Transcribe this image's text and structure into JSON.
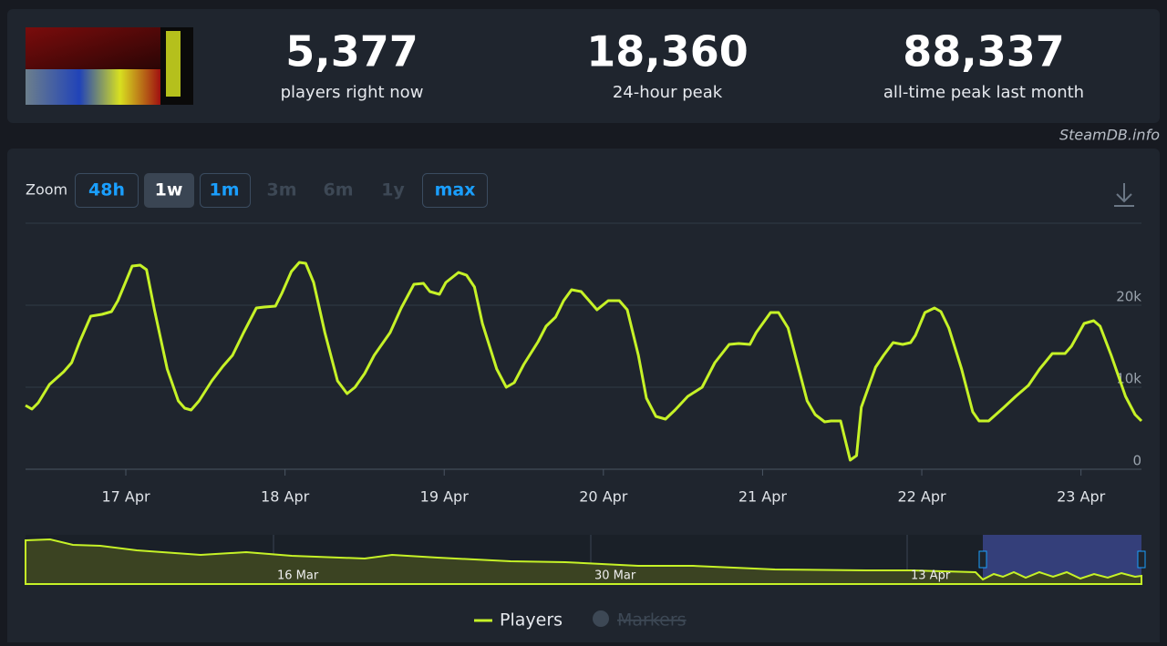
{
  "stats": [
    {
      "value": "5,377",
      "label": "players right now"
    },
    {
      "value": "18,360",
      "label": "24-hour peak"
    },
    {
      "value": "88,337",
      "label": "all-time peak last month"
    }
  ],
  "watermark": "SteamDB.info",
  "zoom": {
    "label": "Zoom",
    "options": [
      "48h",
      "1w",
      "1m",
      "3m",
      "6m",
      "1y",
      "max"
    ]
  },
  "chart_data": {
    "type": "line",
    "x": [
      16.37,
      16.41,
      16.45,
      16.52,
      16.61,
      16.66,
      16.71,
      16.78,
      16.85,
      16.91,
      16.95,
      17.04,
      17.09,
      17.13,
      17.18,
      17.26,
      17.33,
      17.37,
      17.41,
      17.46,
      17.54,
      17.61,
      17.67,
      17.74,
      17.82,
      17.87,
      17.94,
      17.98,
      18.04,
      18.09,
      18.13,
      18.18,
      18.25,
      18.33,
      18.39,
      18.44,
      18.5,
      18.56,
      18.66,
      18.73,
      18.81,
      18.87,
      18.91,
      18.97,
      19.01,
      19.09,
      19.14,
      19.19,
      19.24,
      19.33,
      19.39,
      19.44,
      19.5,
      19.59,
      19.64,
      19.7,
      19.75,
      19.8,
      19.86,
      19.92,
      19.96,
      20.03,
      20.1,
      20.15,
      20.22,
      20.27,
      20.33,
      20.39,
      20.45,
      20.53,
      20.62,
      20.7,
      20.79,
      20.85,
      20.92,
      20.96,
      21.05,
      21.1,
      21.16,
      21.22,
      21.28,
      21.33,
      21.39,
      21.43,
      21.49,
      21.55,
      21.59,
      21.62,
      21.71,
      21.76,
      21.82,
      21.88,
      21.93,
      21.96,
      22.02,
      22.08,
      22.12,
      22.17,
      22.25,
      22.32,
      22.36,
      22.42,
      22.51,
      22.59,
      22.67,
      22.74,
      22.82,
      22.9,
      22.94,
      23.02,
      23.08,
      23.12,
      23.19,
      23.28,
      23.34,
      23.38
    ],
    "series": [
      {
        "name": "Players",
        "color": "#c6f227",
        "values": [
          7780,
          7330,
          8110,
          10330,
          11890,
          13000,
          15560,
          18670,
          18890,
          19220,
          20560,
          24780,
          24890,
          24330,
          19440,
          12220,
          8330,
          7440,
          7220,
          8330,
          10780,
          12560,
          13890,
          16670,
          19670,
          19780,
          19890,
          21440,
          24110,
          25220,
          25110,
          22780,
          16670,
          10780,
          9220,
          10000,
          11670,
          13890,
          16670,
          19670,
          22560,
          22670,
          21670,
          21330,
          22780,
          24000,
          23670,
          22220,
          17780,
          12220,
          10000,
          10560,
          12780,
          15560,
          17440,
          18560,
          20560,
          21890,
          21670,
          20330,
          19440,
          20560,
          20560,
          19440,
          13890,
          8670,
          6440,
          6110,
          7220,
          8890,
          10000,
          13000,
          15220,
          15330,
          15220,
          16670,
          19110,
          19110,
          17220,
          12780,
          8330,
          6670,
          5780,
          5890,
          5890,
          1110,
          1670,
          7560,
          12440,
          13890,
          15440,
          15220,
          15440,
          16330,
          19110,
          19670,
          19220,
          17220,
          12220,
          7000,
          5890,
          5890,
          7440,
          8890,
          10220,
          12220,
          14110,
          14110,
          15000,
          17780,
          18110,
          17440,
          13890,
          8890,
          6670,
          5890
        ]
      }
    ],
    "xlim": [
      16.37,
      23.38
    ],
    "xticks": [
      {
        "value": 17,
        "label": "17 Apr"
      },
      {
        "value": 18,
        "label": "18 Apr"
      },
      {
        "value": 19,
        "label": "19 Apr"
      },
      {
        "value": 20,
        "label": "20 Apr"
      },
      {
        "value": 21,
        "label": "21 Apr"
      },
      {
        "value": 22,
        "label": "22 Apr"
      },
      {
        "value": 23,
        "label": "23 Apr"
      }
    ],
    "ylim": [
      0,
      30000
    ],
    "yticks": [
      0,
      {
        "value": 10000,
        "label": "10k"
      },
      {
        "value": 20000,
        "label": "20k"
      }
    ],
    "grid": true
  },
  "navigator": {
    "labels": [
      "16 Mar",
      "30 Mar",
      "13 Apr"
    ]
  },
  "legend": {
    "markers": "Markers"
  }
}
